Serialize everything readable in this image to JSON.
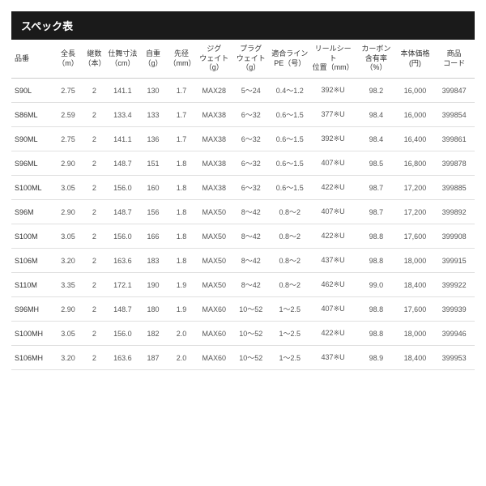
{
  "title": "スペック表",
  "columns": [
    "品番",
    "全長\n（m）",
    "継数\n（本）",
    "仕舞寸法\n（cm）",
    "自重\n（g）",
    "先径\n（mm）",
    "ジグ\nウェイト（g）",
    "プラグ\nウェイト（g）",
    "適合ライン\nPE（号）",
    "リールシート\n位置（mm）",
    "カーボン\n含有率（%）",
    "本体価格\n(円)",
    "商品\nコード"
  ],
  "rows": [
    [
      "S90L",
      "2.75",
      "2",
      "141.1",
      "130",
      "1.7",
      "MAX28",
      "5～24",
      "0.4～1.2",
      "392※U",
      "98.2",
      "16,000",
      "399847"
    ],
    [
      "S86ML",
      "2.59",
      "2",
      "133.4",
      "133",
      "1.7",
      "MAX38",
      "6～32",
      "0.6～1.5",
      "377※U",
      "98.4",
      "16,000",
      "399854"
    ],
    [
      "S90ML",
      "2.75",
      "2",
      "141.1",
      "136",
      "1.7",
      "MAX38",
      "6～32",
      "0.6～1.5",
      "392※U",
      "98.4",
      "16,400",
      "399861"
    ],
    [
      "S96ML",
      "2.90",
      "2",
      "148.7",
      "151",
      "1.8",
      "MAX38",
      "6～32",
      "0.6～1.5",
      "407※U",
      "98.5",
      "16,800",
      "399878"
    ],
    [
      "S100ML",
      "3.05",
      "2",
      "156.0",
      "160",
      "1.8",
      "MAX38",
      "6～32",
      "0.6～1.5",
      "422※U",
      "98.7",
      "17,200",
      "399885"
    ],
    [
      "S96M",
      "2.90",
      "2",
      "148.7",
      "156",
      "1.8",
      "MAX50",
      "8～42",
      "0.8～2",
      "407※U",
      "98.7",
      "17,200",
      "399892"
    ],
    [
      "S100M",
      "3.05",
      "2",
      "156.0",
      "166",
      "1.8",
      "MAX50",
      "8～42",
      "0.8～2",
      "422※U",
      "98.8",
      "17,600",
      "399908"
    ],
    [
      "S106M",
      "3.20",
      "2",
      "163.6",
      "183",
      "1.8",
      "MAX50",
      "8～42",
      "0.8～2",
      "437※U",
      "98.8",
      "18,000",
      "399915"
    ],
    [
      "S110M",
      "3.35",
      "2",
      "172.1",
      "190",
      "1.9",
      "MAX50",
      "8～42",
      "0.8～2",
      "462※U",
      "99.0",
      "18,400",
      "399922"
    ],
    [
      "S96MH",
      "2.90",
      "2",
      "148.7",
      "180",
      "1.9",
      "MAX60",
      "10～52",
      "1～2.5",
      "407※U",
      "98.8",
      "17,600",
      "399939"
    ],
    [
      "S100MH",
      "3.05",
      "2",
      "156.0",
      "182",
      "2.0",
      "MAX60",
      "10～52",
      "1～2.5",
      "422※U",
      "98.8",
      "18,000",
      "399946"
    ],
    [
      "S106MH",
      "3.20",
      "2",
      "163.6",
      "187",
      "2.0",
      "MAX60",
      "10～52",
      "1～2.5",
      "437※U",
      "98.9",
      "18,400",
      "399953"
    ]
  ],
  "colors": {
    "title_bg": "#1a1a1a",
    "title_fg": "#ffffff",
    "header_border": "#cccccc",
    "row_border": "#e0e0e0",
    "text": "#333333",
    "cell_text": "#555555"
  },
  "col_classes": [
    "col-code",
    "col-len",
    "col-pcs",
    "col-stow",
    "col-wt",
    "col-tip",
    "col-jig",
    "col-plug",
    "col-line",
    "col-reel",
    "col-carbon",
    "col-price",
    "col-prod"
  ]
}
